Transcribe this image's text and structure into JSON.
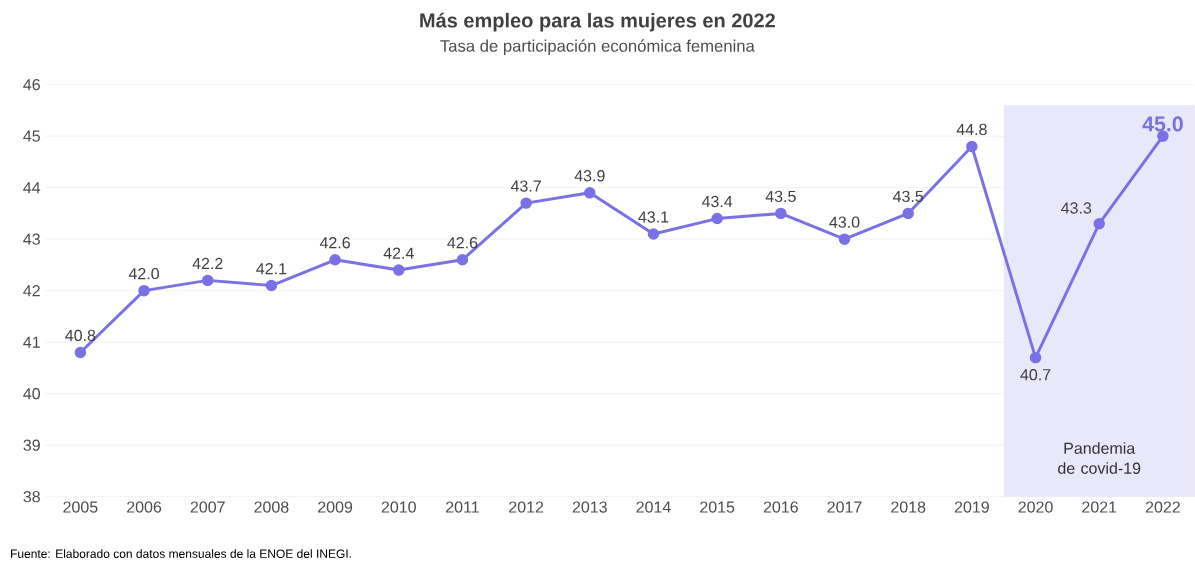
{
  "chart_data": {
    "type": "line",
    "title": "Más empleo para las mujeres en 2022",
    "subtitle": "Tasa de participación económica femenina",
    "x": [
      2005,
      2006,
      2007,
      2008,
      2009,
      2010,
      2011,
      2012,
      2013,
      2014,
      2015,
      2016,
      2017,
      2018,
      2019,
      2020,
      2021,
      2022
    ],
    "values": [
      40.8,
      42.0,
      42.2,
      42.1,
      42.6,
      42.4,
      42.6,
      43.7,
      43.9,
      43.1,
      43.4,
      43.5,
      43.0,
      43.5,
      44.8,
      40.7,
      43.3,
      45.0
    ],
    "value_labels": [
      "40.8",
      "42.0",
      "42.2",
      "42.1",
      "42.6",
      "42.4",
      "42.6",
      "43.7",
      "43.9",
      "43.1",
      "43.4",
      "43.5",
      "43.0",
      "43.5",
      "44.8",
      "40.7",
      "43.3",
      "45.0"
    ],
    "color": "#7b70e6",
    "marker": "circle",
    "grid": "y",
    "xlim": [
      2004.45,
      2022.5
    ],
    "xticks": [
      2005,
      2006,
      2007,
      2008,
      2009,
      2010,
      2011,
      2012,
      2013,
      2014,
      2015,
      2016,
      2017,
      2018,
      2019,
      2020,
      2021,
      2022
    ],
    "ylim": [
      38,
      46
    ],
    "yticks": [
      38,
      39,
      40,
      41,
      42,
      43,
      44,
      45,
      46
    ],
    "bands": [
      {
        "axis": "x",
        "from": 2019.5,
        "to": 2022.5,
        "label": "Pandemia de covid-19",
        "color": "#e9e7fa"
      }
    ],
    "annotations": [
      "Fuente: Elaborado con datos mensuales de la ENOE del INEGI."
    ]
  }
}
